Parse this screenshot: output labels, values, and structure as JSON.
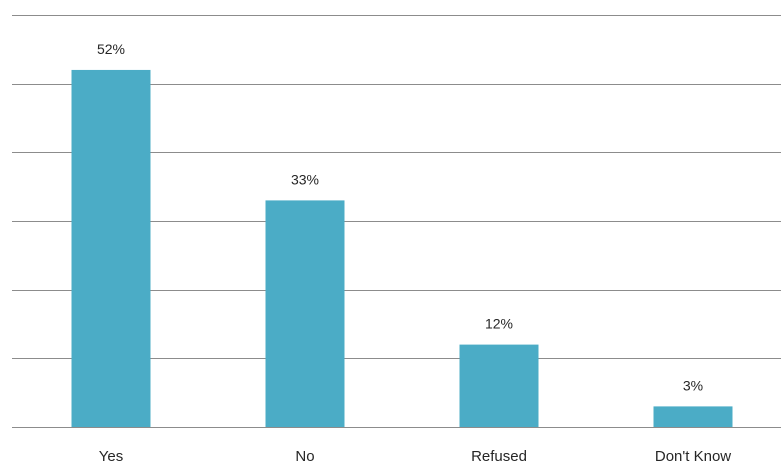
{
  "chart_data": {
    "type": "bar",
    "categories": [
      "Yes",
      "No",
      "Refused",
      "Don't Know"
    ],
    "values": [
      52,
      33,
      12,
      3
    ],
    "value_labels": [
      "52%",
      "33%",
      "12%",
      "3%"
    ],
    "ylim": [
      0,
      60
    ],
    "grid": true,
    "bar_color": "#4BACC6",
    "gridline_color": "#8C8C8C"
  }
}
